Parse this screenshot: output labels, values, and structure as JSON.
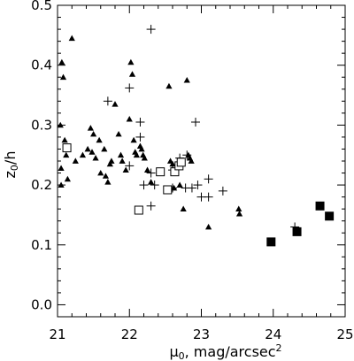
{
  "chart_data": {
    "type": "scatter",
    "title": "",
    "xlabel": "μ",
    "xlabel_subscript": "0",
    "xlabel_rest": ", mag/arcsec",
    "xlabel_superscript": "2",
    "ylabel": "z",
    "ylabel_subscript": "0",
    "ylabel_rest": "/h",
    "xlim": [
      21,
      25
    ],
    "ylim": [
      -0.02,
      0.5
    ],
    "x_ticks": [
      21,
      22,
      23,
      24,
      25
    ],
    "x_tick_labels": [
      "21",
      "22",
      "23",
      "24",
      "25"
    ],
    "y_ticks": [
      0.0,
      0.1,
      0.2,
      0.3,
      0.4,
      0.5
    ],
    "y_tick_labels": [
      "0.0",
      "0.1",
      "0.2",
      "0.3",
      "0.4",
      "0.5"
    ],
    "grid": false,
    "legend": "none",
    "series": [
      {
        "marker": "filled-triangle",
        "color": "#000000",
        "points": [
          [
            21.06,
            0.405
          ],
          [
            21.08,
            0.38
          ],
          [
            21.04,
            0.3
          ],
          [
            21.1,
            0.275
          ],
          [
            21.12,
            0.25
          ],
          [
            21.05,
            0.228
          ],
          [
            21.14,
            0.21
          ],
          [
            21.05,
            0.2
          ],
          [
            21.2,
            0.445
          ],
          [
            21.25,
            0.24
          ],
          [
            21.35,
            0.25
          ],
          [
            21.42,
            0.26
          ],
          [
            21.48,
            0.255
          ],
          [
            21.46,
            0.295
          ],
          [
            21.5,
            0.285
          ],
          [
            21.53,
            0.245
          ],
          [
            21.58,
            0.275
          ],
          [
            21.6,
            0.22
          ],
          [
            21.65,
            0.26
          ],
          [
            21.67,
            0.215
          ],
          [
            21.7,
            0.205
          ],
          [
            21.73,
            0.235
          ],
          [
            21.75,
            0.24
          ],
          [
            21.8,
            0.335
          ],
          [
            21.85,
            0.285
          ],
          [
            21.88,
            0.25
          ],
          [
            21.9,
            0.24
          ],
          [
            21.95,
            0.225
          ],
          [
            22.0,
            0.31
          ],
          [
            22.02,
            0.405
          ],
          [
            22.04,
            0.385
          ],
          [
            22.06,
            0.275
          ],
          [
            22.08,
            0.255
          ],
          [
            22.1,
            0.25
          ],
          [
            22.15,
            0.265
          ],
          [
            22.17,
            0.26
          ],
          [
            22.19,
            0.25
          ],
          [
            22.21,
            0.245
          ],
          [
            22.25,
            0.225
          ],
          [
            22.3,
            0.205
          ],
          [
            22.55,
            0.365
          ],
          [
            22.57,
            0.24
          ],
          [
            22.6,
            0.235
          ],
          [
            22.62,
            0.195
          ],
          [
            22.7,
            0.2
          ],
          [
            22.75,
            0.16
          ],
          [
            22.8,
            0.375
          ],
          [
            22.82,
            0.25
          ],
          [
            22.84,
            0.245
          ],
          [
            22.86,
            0.24
          ],
          [
            23.1,
            0.13
          ],
          [
            23.52,
            0.16
          ],
          [
            23.53,
            0.152
          ]
        ]
      },
      {
        "marker": "plus",
        "color": "#000000",
        "points": [
          [
            21.7,
            0.34
          ],
          [
            22.0,
            0.362
          ],
          [
            22.0,
            0.232
          ],
          [
            22.15,
            0.28
          ],
          [
            22.15,
            0.305
          ],
          [
            22.2,
            0.2
          ],
          [
            22.3,
            0.46
          ],
          [
            22.3,
            0.22
          ],
          [
            22.3,
            0.165
          ],
          [
            22.35,
            0.2
          ],
          [
            22.6,
            0.225
          ],
          [
            22.6,
            0.195
          ],
          [
            22.7,
            0.245
          ],
          [
            22.78,
            0.195
          ],
          [
            22.8,
            0.25
          ],
          [
            22.87,
            0.195
          ],
          [
            22.92,
            0.305
          ],
          [
            22.95,
            0.2
          ],
          [
            23.0,
            0.18
          ],
          [
            23.1,
            0.21
          ],
          [
            23.1,
            0.18
          ],
          [
            23.3,
            0.19
          ],
          [
            24.3,
            0.13
          ]
        ]
      },
      {
        "marker": "open-square",
        "color": "#000000",
        "points": [
          [
            21.13,
            0.262
          ],
          [
            22.13,
            0.158
          ],
          [
            22.43,
            0.222
          ],
          [
            22.53,
            0.192
          ],
          [
            22.63,
            0.222
          ],
          [
            22.69,
            0.232
          ],
          [
            22.72,
            0.238
          ]
        ]
      },
      {
        "marker": "filled-square",
        "color": "#000000",
        "points": [
          [
            23.97,
            0.105
          ],
          [
            24.33,
            0.122
          ],
          [
            24.65,
            0.165
          ],
          [
            24.78,
            0.148
          ]
        ]
      }
    ]
  }
}
